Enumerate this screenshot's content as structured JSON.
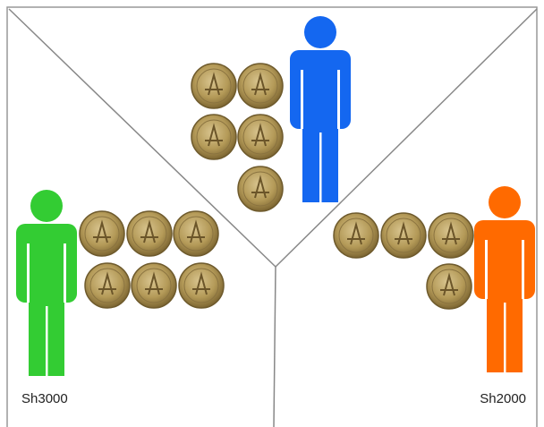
{
  "labels": {
    "left": "Sh3000",
    "right": "Sh2000"
  }
}
